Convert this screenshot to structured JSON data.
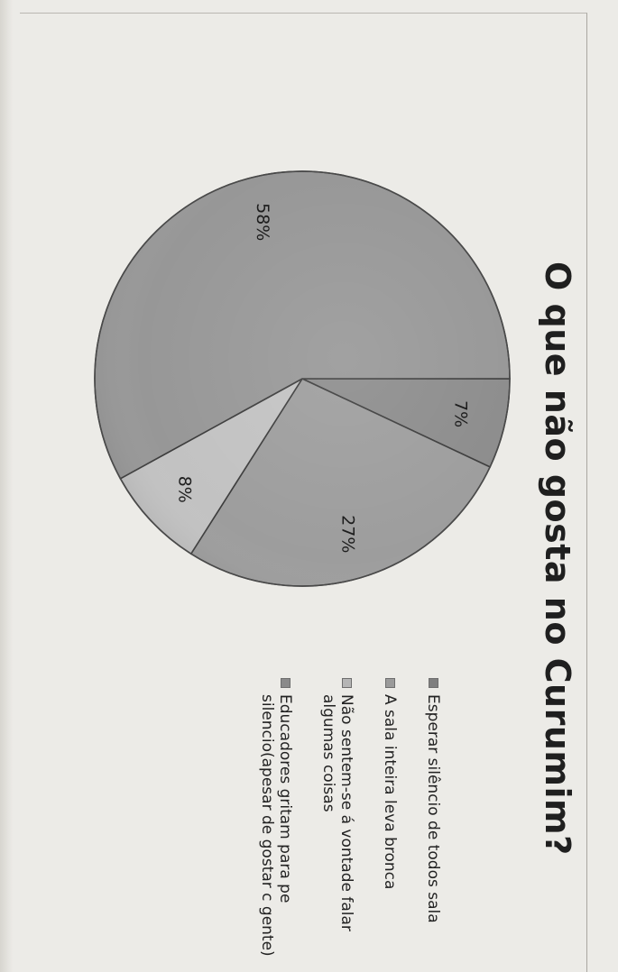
{
  "chart_data": {
    "type": "pie",
    "title": "O que não gosta no Curumim?",
    "categories": [
      "Esperar silêncio de todos sala",
      "A sala inteira leva bronca",
      "Não sentem-se á vontade falar algumas coisas",
      "Educadores gritam para pe silencio(apesar de gostar c gente)"
    ],
    "values": [
      7,
      27,
      8,
      58
    ],
    "data_labels": [
      "7%",
      "27%",
      "8%",
      "58%"
    ],
    "legend_position": "right",
    "colors": [
      "#8c8c8c",
      "#9d9d9d",
      "#c2c2c2",
      "#979797"
    ]
  },
  "legend": {
    "items": [
      {
        "label": "Esperar silêncio de todos sala"
      },
      {
        "label": "A sala inteira leva bronca"
      },
      {
        "label": "Não sentem-se á vontade falar algumas coisas"
      },
      {
        "label": "Educadores gritam para pe silencio(apesar de gostar c gente)"
      }
    ]
  }
}
